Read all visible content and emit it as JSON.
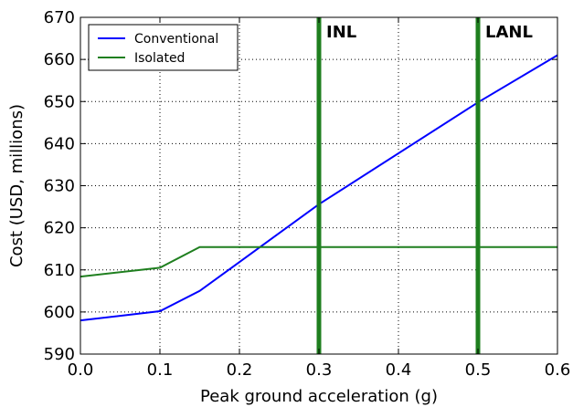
{
  "chart_data": {
    "type": "line",
    "xlabel": "Peak ground acceleration (g)",
    "ylabel": "Cost (USD, millions)",
    "xlim": [
      0.0,
      0.6
    ],
    "ylim": [
      590,
      670
    ],
    "xticks": [
      "0.0",
      "0.1",
      "0.2",
      "0.3",
      "0.4",
      "0.5",
      "0.6"
    ],
    "yticks": [
      "590",
      "600",
      "610",
      "620",
      "630",
      "640",
      "650",
      "660",
      "670"
    ],
    "grid": true,
    "legend_position": "top-left",
    "series": [
      {
        "name": "Conventional",
        "color": "#0000ff",
        "x": [
          0.0,
          0.1,
          0.15,
          0.3,
          0.5,
          0.6
        ],
        "y": [
          598.0,
          600.2,
          605.0,
          625.6,
          649.8,
          661.0
        ]
      },
      {
        "name": "Isolated",
        "color": "#1f7f1f",
        "x": [
          0.0,
          0.1,
          0.15,
          0.3,
          0.5,
          0.6
        ],
        "y": [
          608.4,
          610.5,
          615.4,
          615.4,
          615.4,
          615.4
        ]
      }
    ],
    "vlines": [
      {
        "x": 0.3,
        "label": "INL",
        "color": "#1f7f1f"
      },
      {
        "x": 0.5,
        "label": "LANL",
        "color": "#1f7f1f"
      }
    ]
  }
}
